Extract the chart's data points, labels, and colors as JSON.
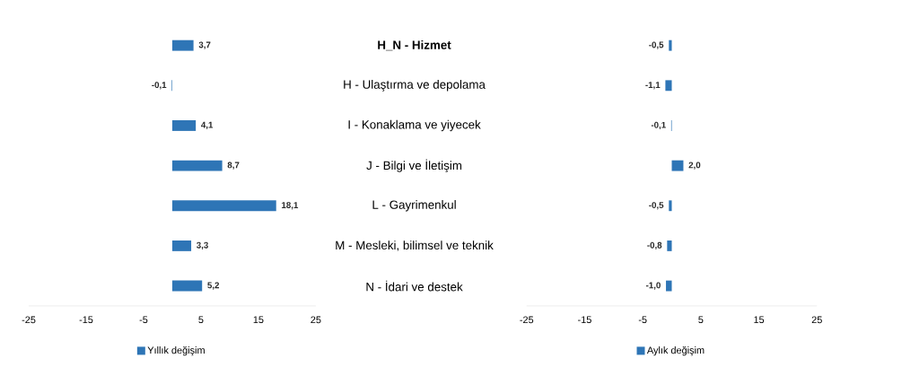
{
  "chart_data": [
    {
      "type": "bar",
      "orientation": "horizontal",
      "categories": [
        "**H_N - Hizmet**",
        "H - Ulaştırma ve depolama",
        "I - Konaklama ve yiyecek",
        "J - Bilgi ve İletişim",
        "L - Gayrimenkul",
        "M - Mesleki, bilimsel ve teknik",
        "N - İdari ve destek"
      ],
      "series": [
        {
          "name": "Yıllık değişim",
          "color": "#2e75b6",
          "values": [
            3.7,
            -0.1,
            4.1,
            8.7,
            18.1,
            3.3,
            5.2
          ],
          "value_labels": [
            "3,7",
            "-0,1",
            "4,1",
            "8,7",
            "18,1",
            "3,3",
            "5,2"
          ]
        }
      ],
      "xlim": [
        -25,
        25
      ],
      "xticks": [
        -25,
        -15,
        -5,
        5,
        15,
        25
      ],
      "legend": "bottom"
    },
    {
      "type": "bar",
      "orientation": "horizontal",
      "categories": [
        null,
        null,
        null,
        null,
        null,
        null,
        null
      ],
      "series": [
        {
          "name": "Aylık değişim",
          "color": "#2e75b6",
          "values": [
            -0.5,
            -1.1,
            -0.1,
            2.0,
            -0.5,
            -0.8,
            -1.0
          ],
          "value_labels": [
            "-0,5",
            "-1,1",
            "-0,1",
            "2,0",
            "-0,5",
            "-0,8",
            "-1,0"
          ]
        }
      ],
      "xlim": [
        -25,
        25
      ],
      "xticks": [
        -25,
        -15,
        -5,
        5,
        15,
        25
      ],
      "legend": "bottom",
      "tick_labels": "x"
    }
  ]
}
